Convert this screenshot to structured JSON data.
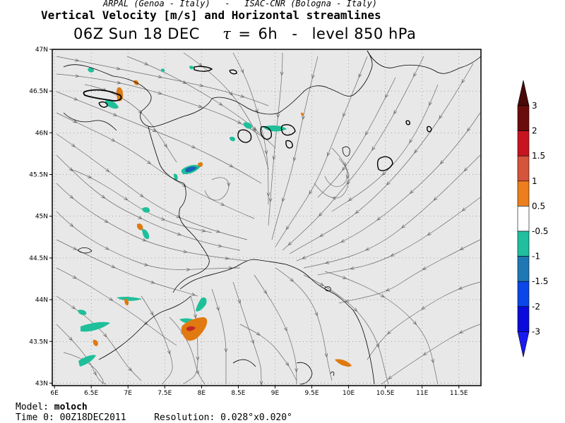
{
  "header": {
    "credit_left": "ARPAL (Genoa - Italy)",
    "credit_sep": "-",
    "credit_right": "ISAC-CNR (Bologna - Italy)",
    "title": "Vertical Velocity [m/s] and Horizontal streamlines",
    "run_time": "06Z Sun 18 DEC",
    "tau_symbol": "τ",
    "tau_eq": "=",
    "tau_value": "6h",
    "separator": "-",
    "level": "level 850 hPa"
  },
  "map": {
    "lat_ticks": [
      "47N",
      "46.5N",
      "46N",
      "45.5N",
      "45N",
      "44.5N",
      "44N",
      "43.5N",
      "43N"
    ],
    "lon_ticks": [
      "6E",
      "6.5E",
      "7E",
      "7.5E",
      "8E",
      "8.5E",
      "9E",
      "9.5E",
      "10E",
      "10.5E",
      "11E",
      "11.5E"
    ],
    "lat_values": [
      47,
      46.5,
      46,
      45.5,
      45,
      44.5,
      44,
      43.5,
      43
    ],
    "lon_values": [
      6,
      6.5,
      7,
      7.5,
      8,
      8.5,
      9,
      9.5,
      10,
      10.5,
      11,
      11.5
    ],
    "lon_range": [
      6,
      11.5
    ],
    "lat_range": [
      42.97,
      47
    ],
    "background_color": "#e8e8e8",
    "coastline_color": "#000000",
    "streamline_color": "#6a6a6a",
    "grid": "dotted",
    "colors": {
      "teal": "#1fbf9a",
      "dark_blue": "#1860b8",
      "orange": "#e07a10",
      "red": "#c02828"
    }
  },
  "colorbar": {
    "labels": [
      "3",
      "2",
      "1.5",
      "1",
      "0.5",
      "-0.5",
      "-1",
      "-1.5",
      "-2",
      "-3"
    ],
    "colors": [
      "#6b0c0c",
      "#c8141e",
      "#d4543c",
      "#ec7e1e",
      "#ffffff",
      "#1fbfa0",
      "#1f78b4",
      "#0a46e8",
      "#0a0adc"
    ],
    "top_arrow_color": "#4a0808",
    "bottom_arrow_color": "#1a1af0"
  },
  "footer": {
    "model_label": "Model:",
    "model_value": "moloch",
    "time0_label": "Time 0:",
    "time0_value": "00Z18DEC2011",
    "resolution_label": "Resolution:",
    "resolution_value": "0.028°x0.020°"
  }
}
